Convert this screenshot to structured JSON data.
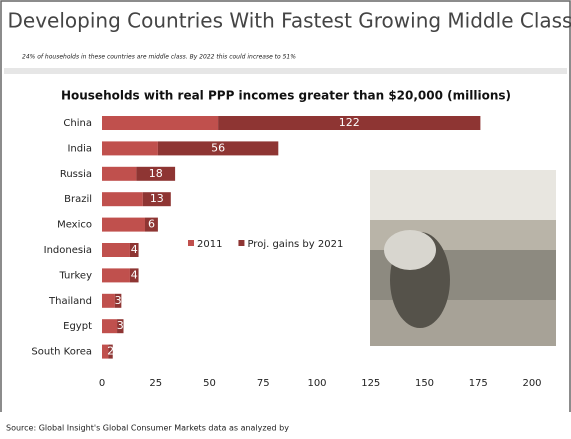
{
  "chart_data": {
    "type": "stacked-bar-horizontal",
    "title": "Developing Countries With Fastest Growing Middle Class",
    "subtitle": "24% of households in these countries are middle class. By 2022 this could increase to 51%",
    "chart_title": "Households with real PPP incomes greater than $20,000 (millions)",
    "source": "Source: Global Insight's Global Consumer Markets data as analyzed by",
    "categories": [
      "China",
      "India",
      "Russia",
      "Brazil",
      "Mexico",
      "Indonesia",
      "Turkey",
      "Thailand",
      "Egypt",
      "South Korea"
    ],
    "series": [
      {
        "name": "2011",
        "color": "#c0504d",
        "values": [
          54,
          26,
          16,
          19,
          20,
          13,
          13,
          6,
          7,
          3
        ]
      },
      {
        "name": "Proj. gains by 2021",
        "color": "#8e3533",
        "values": [
          122,
          56,
          18,
          13,
          6,
          4,
          4,
          3,
          3,
          2
        ]
      }
    ],
    "xlim": [
      0,
      200
    ],
    "xticks": [
      0,
      25,
      50,
      75,
      100,
      125,
      150,
      175,
      200
    ]
  }
}
